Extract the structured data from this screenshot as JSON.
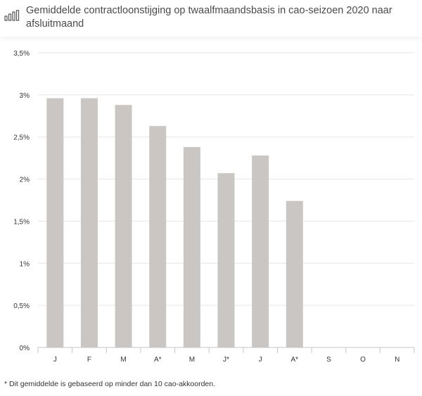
{
  "title": "Gemiddelde contractloonstijging op twaalfmaandsbasis in cao-seizoen 2020 naar afsluitmaand",
  "footnote": "* Dit gemiddelde is gebaseerd op minder dan 10 cao-akkoorden.",
  "icons": {
    "title_icon": "bar-chart-icon"
  },
  "colors": {
    "bar": "#cac6c3",
    "grid": "#e6e6e6",
    "axis": "#c6c6c6",
    "text": "#333333"
  },
  "chart_data": {
    "type": "bar",
    "categories": [
      "J",
      "F",
      "M",
      "A*",
      "M",
      "J*",
      "J",
      "A*",
      "S",
      "O",
      "N"
    ],
    "values": [
      2.96,
      2.96,
      2.88,
      2.63,
      2.38,
      2.07,
      2.28,
      1.74,
      null,
      null,
      null
    ],
    "yticks": [
      "0%",
      "0,5%",
      "1%",
      "1,5%",
      "2%",
      "2,5%",
      "3%",
      "3,5%"
    ],
    "ytick_values": [
      0,
      0.5,
      1,
      1.5,
      2,
      2.5,
      3,
      3.5
    ],
    "ylim": [
      0,
      3.5
    ],
    "title": "Gemiddelde contractloonstijging op twaalfmaandsbasis in cao-seizoen 2020 naar afsluitmaand",
    "xlabel": "",
    "ylabel": "",
    "grid": true,
    "legend": "none"
  }
}
